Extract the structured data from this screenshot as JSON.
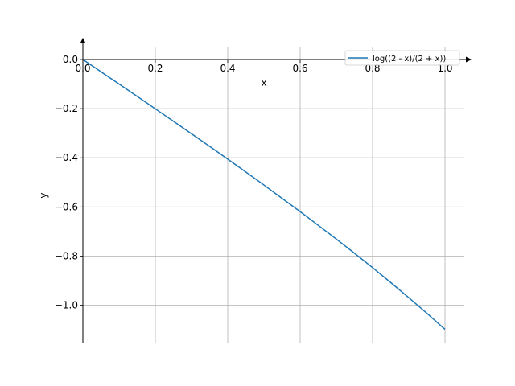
{
  "chart_data": {
    "type": "line",
    "title": "",
    "xlabel": "x",
    "ylabel": "y",
    "xlim": [
      0.0,
      1.0
    ],
    "ylim": [
      -1.15,
      0.08
    ],
    "grid": true,
    "legend_placement": "top-right",
    "x_ticks": [
      0.0,
      0.2,
      0.4,
      0.6,
      0.8,
      1.0
    ],
    "x_tick_labels": [
      "0.0",
      "0.2",
      "0.4",
      "0.6",
      "0.8",
      "1.0"
    ],
    "y_ticks": [
      0.0,
      -0.2,
      -0.4,
      -0.6,
      -0.8,
      -1.0
    ],
    "y_tick_labels": [
      "0.0",
      "−0.2",
      "−0.4",
      "−0.6",
      "−0.8",
      "−1.0"
    ],
    "series": [
      {
        "name": "log((2 - x)/(2 + x))",
        "color": "#1f77b4",
        "x": [
          0.0,
          0.05,
          0.1,
          0.15,
          0.2,
          0.25,
          0.3,
          0.35,
          0.4,
          0.45,
          0.5,
          0.55,
          0.6,
          0.65,
          0.7,
          0.75,
          0.8,
          0.85,
          0.9,
          0.95,
          1.0
        ],
        "y": [
          0.0,
          -0.05,
          -0.1,
          -0.15,
          -0.2007,
          -0.2513,
          -0.3023,
          -0.3536,
          -0.4055,
          -0.458,
          -0.5108,
          -0.5651,
          -0.619,
          -0.6749,
          -0.7309,
          -0.7884,
          -0.8473,
          -0.9075,
          -0.9694,
          -1.033,
          -1.0986
        ]
      }
    ]
  }
}
